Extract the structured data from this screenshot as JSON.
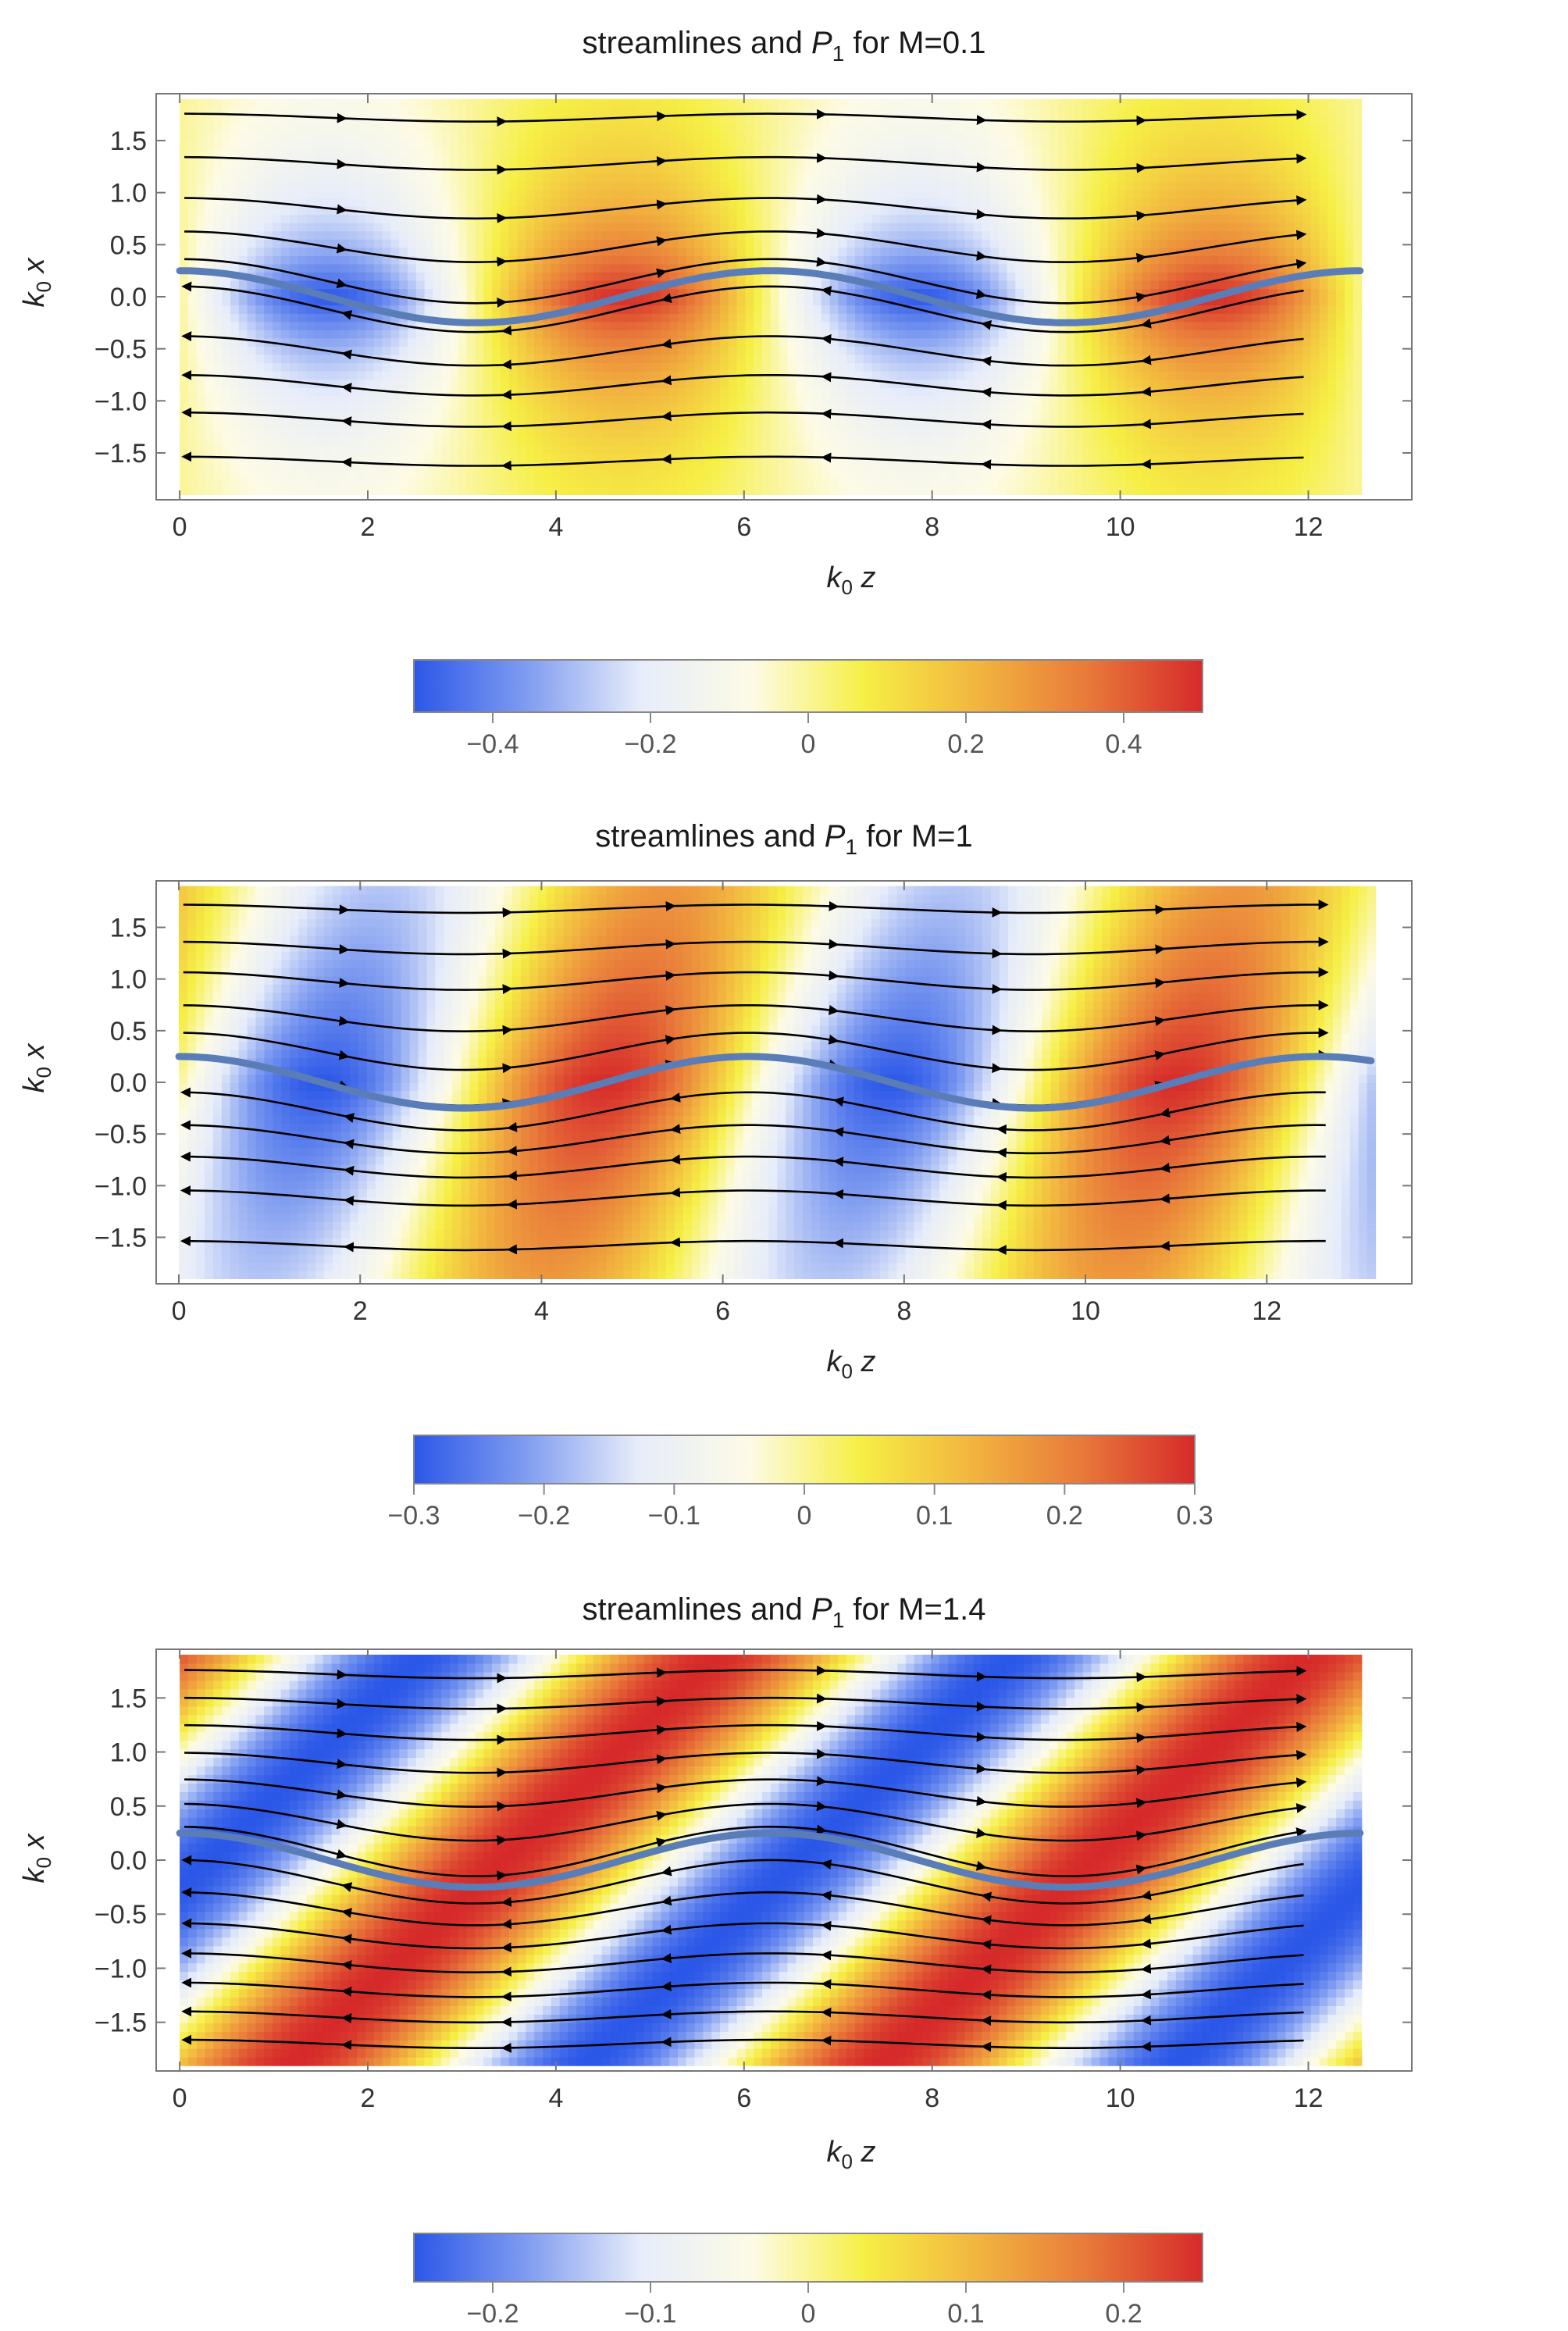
{
  "figure": {
    "colormap": [
      "#2b57e8",
      "#7f9cf0",
      "#e6ecfa",
      "#fdfbe6",
      "#f6ef45",
      "#f2b53f",
      "#e8783a",
      "#d62a2a"
    ],
    "streamline_color": "#000000",
    "interface_color": "#5a7db8"
  },
  "chart_data": [
    {
      "type": "heatmap",
      "title_pre": "streamlines and ",
      "title_sym": "P",
      "title_sub": "1",
      "title_post": " for M=0.1",
      "xlabel": "k",
      "xlabel_sub": "0",
      "xlabel_var": " z",
      "ylabel": "k",
      "ylabel_sub": "0",
      "ylabel_var": " x",
      "xlim": [
        -0.25,
        13.1
      ],
      "ylim": [
        -1.95,
        1.95
      ],
      "field_xmax": 12.566,
      "xticks": [
        0,
        2,
        4,
        6,
        8,
        10,
        12
      ],
      "xtick_labels": [
        "0",
        "2",
        "4",
        "6",
        "8",
        "10",
        "12"
      ],
      "yticks": [
        1.5,
        1.0,
        0.5,
        0.0,
        -0.5,
        -1.0,
        -1.5
      ],
      "ytick_labels": [
        "1.5",
        "1.0",
        "0.5",
        "0.0",
        "−0.5",
        "−1.0",
        "−1.5"
      ],
      "interface": {
        "amplitude": 0.25,
        "wavenumber": 1
      },
      "field": {
        "kind": "evanescent",
        "amplitude": 0.5,
        "decay": 0.9,
        "tilt": 0
      },
      "colorbar": {
        "range": [
          -0.5,
          0.5
        ],
        "ticks": [
          -0.4,
          -0.2,
          0,
          0.2,
          0.4
        ],
        "tick_labels": [
          "−0.4",
          "−0.2",
          "0",
          "0.2",
          "0.4"
        ]
      },
      "streamlines_y": [
        1.72,
        1.28,
        0.85,
        0.48,
        0.15,
        -0.12,
        -0.52,
        -0.85,
        -1.18,
        -1.58
      ],
      "streamline_direction": "rightward above interface, leftward below"
    },
    {
      "type": "heatmap",
      "title_pre": "streamlines and ",
      "title_sym": "P",
      "title_sub": "1",
      "title_post": " for M=1",
      "xlabel": "k",
      "xlabel_sub": "0",
      "xlabel_var": " z",
      "ylabel": "k",
      "ylabel_sub": "0",
      "ylabel_var": " x",
      "xlim": [
        -0.25,
        13.6
      ],
      "ylim": [
        -1.95,
        1.95
      ],
      "field_xmax": 13.2,
      "xticks": [
        0,
        2,
        4,
        6,
        8,
        10,
        12
      ],
      "xtick_labels": [
        "0",
        "2",
        "4",
        "6",
        "8",
        "10",
        "12"
      ],
      "yticks": [
        1.5,
        1.0,
        0.5,
        0.0,
        -0.5,
        -1.0,
        -1.5
      ],
      "ytick_labels": [
        "1.5",
        "1.0",
        "0.5",
        "0.0",
        "−0.5",
        "−1.0",
        "−1.5"
      ],
      "interface": {
        "amplitude": 0.25,
        "wavenumber": 1
      },
      "field": {
        "kind": "weak-decay",
        "amplitude": 0.3,
        "decay": 0.3,
        "tilt": 0.35
      },
      "colorbar": {
        "range": [
          -0.3,
          0.3
        ],
        "ticks": [
          -0.3,
          -0.2,
          -0.1,
          0,
          0.1,
          0.2,
          0.3
        ],
        "tick_labels": [
          "−0.3",
          "−0.2",
          "−0.1",
          "0",
          "0.1",
          "0.2",
          "0.3"
        ]
      },
      "streamlines_y": [
        1.68,
        1.3,
        0.98,
        0.62,
        0.3,
        0.02,
        -0.28,
        -0.55,
        -0.82,
        -1.12,
        -1.58
      ],
      "streamline_direction": "rightward above interface, leftward below"
    },
    {
      "type": "heatmap",
      "title_pre": "streamlines and ",
      "title_sym": "P",
      "title_sub": "1",
      "title_post": " for M=1.4",
      "xlabel": "k",
      "xlabel_sub": "0",
      "xlabel_var": " z",
      "ylabel": "k",
      "ylabel_sub": "0",
      "ylabel_var": " x",
      "xlim": [
        -0.25,
        13.1
      ],
      "ylim": [
        -1.95,
        1.95
      ],
      "field_xmax": 12.566,
      "xticks": [
        0,
        2,
        4,
        6,
        8,
        10,
        12
      ],
      "xtick_labels": [
        "0",
        "2",
        "4",
        "6",
        "8",
        "10",
        "12"
      ],
      "yticks": [
        1.5,
        1.0,
        0.5,
        0.0,
        -0.5,
        -1.0,
        -1.5
      ],
      "ytick_labels": [
        "1.5",
        "1.0",
        "0.5",
        "0.0",
        "−0.5",
        "−1.0",
        "−1.5"
      ],
      "interface": {
        "amplitude": 0.25,
        "wavenumber": 1
      },
      "field": {
        "kind": "radiating",
        "amplitude": 0.25,
        "decay": 0,
        "tilt": 1.0
      },
      "colorbar": {
        "range": [
          -0.25,
          0.25
        ],
        "ticks": [
          -0.2,
          -0.1,
          0,
          0.1,
          0.2
        ],
        "tick_labels": [
          "−0.2",
          "−0.1",
          "0",
          "0.1",
          "0.2"
        ]
      },
      "streamlines_y": [
        1.72,
        1.45,
        1.18,
        0.9,
        0.62,
        0.35,
        0.08,
        -0.2,
        -0.45,
        -0.7,
        -0.95,
        -1.2,
        -1.45,
        -1.7
      ],
      "streamline_direction": "rightward above interface, leftward below"
    }
  ]
}
